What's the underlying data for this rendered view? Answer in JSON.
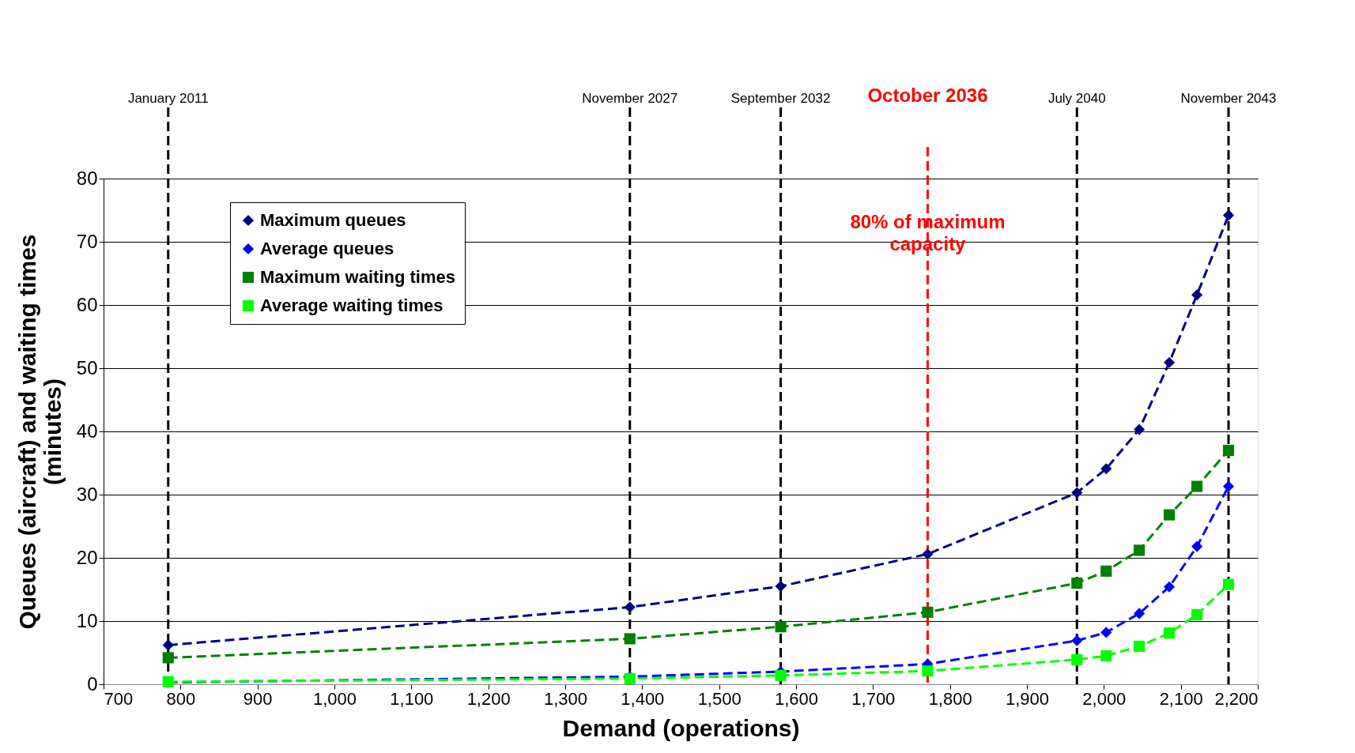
{
  "chart_data": {
    "type": "line",
    "xlabel": "Demand (operations)",
    "ylabel": "Queues (aircraft) and waiting times (minutes)",
    "x": [
      784,
      1384,
      1580,
      1771,
      1965,
      2003,
      2046,
      2085,
      2121,
      2162
    ],
    "series": [
      {
        "name": "Maximum queues",
        "color": "#000080",
        "marker": "diamond",
        "values": [
          6.2,
          12.2,
          15.5,
          20.6,
          30.3,
          34.1,
          40.3,
          50.9,
          61.6,
          74.2
        ]
      },
      {
        "name": "Average queues",
        "color": "#0000ff",
        "marker": "diamond",
        "values": [
          0.3,
          1.2,
          2.0,
          3.2,
          6.9,
          8.2,
          11.2,
          15.4,
          21.8,
          31.3
        ]
      },
      {
        "name": "Maximum waiting times",
        "color": "#008000",
        "marker": "square",
        "values": [
          4.2,
          7.2,
          9.1,
          11.4,
          16.0,
          17.9,
          21.2,
          26.8,
          31.3,
          37.0
        ]
      },
      {
        "name": "Average waiting times",
        "color": "#00ff00",
        "marker": "square",
        "values": [
          0.4,
          0.9,
          1.4,
          2.1,
          3.9,
          4.5,
          6.0,
          8.1,
          11.0,
          15.8
        ]
      }
    ],
    "xlim": [
      700,
      2200
    ],
    "xticks": [
      700,
      800,
      900,
      {
        "value": 1000,
        "label": "1,000"
      },
      {
        "value": 1100,
        "label": "1,100"
      },
      {
        "value": 1200,
        "label": "1,200"
      },
      {
        "value": 1300,
        "label": "1,300"
      },
      {
        "value": 1400,
        "label": "1,400"
      },
      {
        "value": 1500,
        "label": "1,500"
      },
      {
        "value": 1600,
        "label": "1,600"
      },
      {
        "value": 1700,
        "label": "1,700"
      },
      {
        "value": 1800,
        "label": "1,800"
      },
      {
        "value": 1900,
        "label": "1,900"
      },
      {
        "value": 2000,
        "label": "2,000"
      },
      {
        "value": 2100,
        "label": "2,100"
      },
      {
        "value": 2200,
        "label": "2,200"
      }
    ],
    "ylim": [
      0,
      80
    ],
    "yticks": [
      0,
      10,
      20,
      30,
      40,
      50,
      60,
      70,
      80
    ],
    "grid": "y",
    "legend": "top left",
    "line_style": "dashed",
    "ref_lines": [
      {
        "axis": "x",
        "value": 784,
        "label": "January 2011",
        "color": "#000000",
        "line_style": "dashed"
      },
      {
        "axis": "x",
        "value": 1384,
        "label": "November 2027",
        "color": "#000000",
        "line_style": "dashed"
      },
      {
        "axis": "x",
        "value": 1580,
        "label": "September 2032",
        "color": "#000000",
        "line_style": "dashed"
      },
      {
        "axis": "x",
        "value": 1771,
        "label": "October 2036",
        "color": "#ff0000",
        "line_style": "dashed"
      },
      {
        "axis": "x",
        "value": 1965,
        "label": "July 2040",
        "color": "#000000",
        "line_style": "dashed"
      },
      {
        "axis": "x",
        "value": 2162,
        "label": "November 2043",
        "color": "#000000",
        "line_style": "dashed"
      }
    ],
    "annotations": [
      {
        "text": "80% of maximum capacity",
        "x": 1771,
        "y": 73
      }
    ]
  }
}
